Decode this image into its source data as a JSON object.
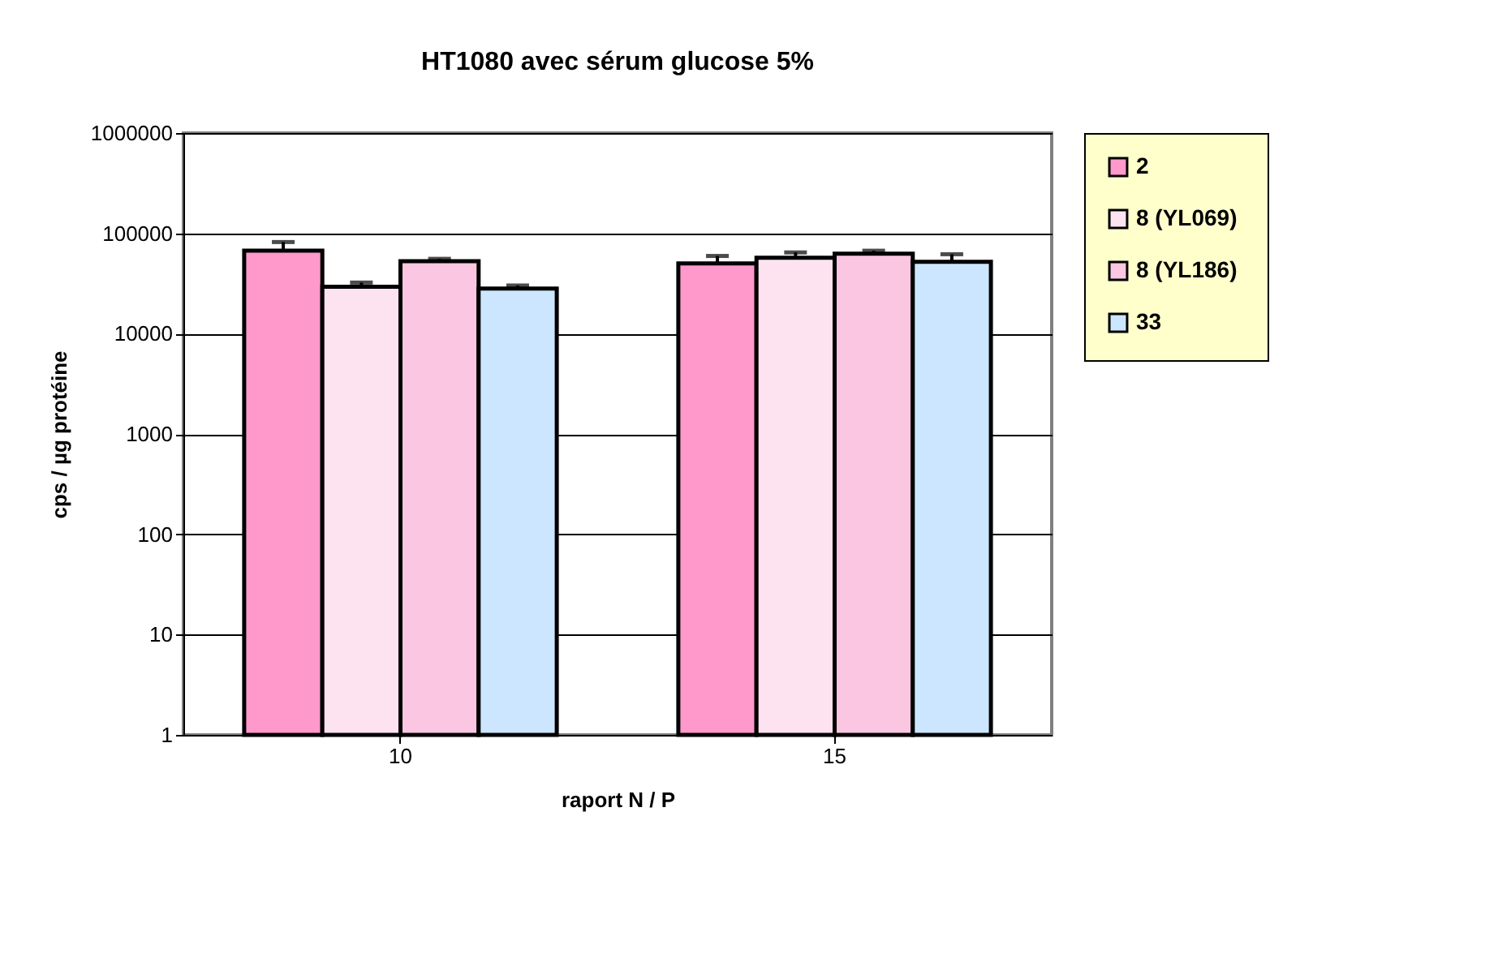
{
  "chart_data": {
    "type": "bar",
    "title": "HT1080 avec sérum glucose 5%",
    "xlabel": "raport  N / P",
    "ylabel": "cps / µg protéine",
    "categories": [
      "10",
      "15"
    ],
    "series": [
      {
        "name": "2",
        "color": "#ff99cc",
        "values": [
          67100,
          50100
        ],
        "errors": [
          [
            67100,
            81900
          ],
          [
            50100,
            59500
          ]
        ]
      },
      {
        "name": "8  (YL069)",
        "color": "#fde3f0",
        "values": [
          29400,
          57200
        ],
        "errors": [
          [
            29400,
            32300
          ],
          [
            57200,
            64500
          ]
        ]
      },
      {
        "name": "8  (YL186)",
        "color": "#fbc6e1",
        "values": [
          52800,
          62800
        ],
        "errors": [
          [
            52800,
            55700
          ],
          [
            62800,
            67100
          ]
        ]
      },
      {
        "name": "33",
        "color": "#cce6ff",
        "values": [
          28200,
          52100
        ],
        "errors": [
          [
            28200,
            30200
          ],
          [
            52100,
            61900
          ]
        ]
      }
    ],
    "log": true,
    "ylim": [
      1,
      1000000
    ],
    "yticks": [
      1,
      10,
      100,
      1000,
      10000,
      100000,
      1000000
    ],
    "grid": "y",
    "legend": "right"
  }
}
